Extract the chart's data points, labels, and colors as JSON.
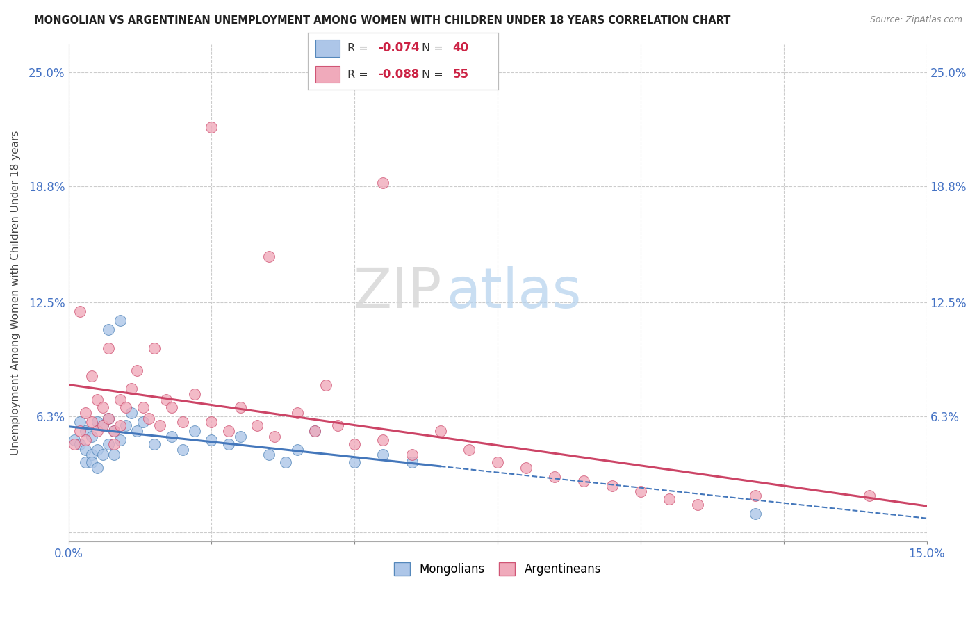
{
  "title": "MONGOLIAN VS ARGENTINEAN UNEMPLOYMENT AMONG WOMEN WITH CHILDREN UNDER 18 YEARS CORRELATION CHART",
  "source": "Source: ZipAtlas.com",
  "ylabel": "Unemployment Among Women with Children Under 18 years",
  "xlim": [
    0,
    0.15
  ],
  "ylim": [
    -0.005,
    0.265
  ],
  "xticks": [
    0.0,
    0.025,
    0.05,
    0.075,
    0.1,
    0.125,
    0.15
  ],
  "ytick_positions": [
    0.0,
    0.063,
    0.125,
    0.188,
    0.25
  ],
  "ytick_labels_left": [
    "",
    "6.3%",
    "12.5%",
    "18.8%",
    "25.0%"
  ],
  "ytick_labels_right": [
    "",
    "6.3%",
    "12.5%",
    "18.8%",
    "25.0%"
  ],
  "mongolian_R": -0.074,
  "mongolian_N": 40,
  "argentinean_R": -0.088,
  "argentinean_N": 55,
  "mongolian_color": "#adc6e8",
  "argentinean_color": "#f0aabb",
  "mongolian_edge": "#5588bb",
  "argentinean_edge": "#d05575",
  "trend_mongolian_color": "#4477bb",
  "trend_argentinean_color": "#cc4466",
  "background_color": "#ffffff",
  "grid_color": "#cccccc",
  "mong_x": [
    0.001,
    0.002,
    0.002,
    0.003,
    0.003,
    0.003,
    0.004,
    0.004,
    0.004,
    0.005,
    0.005,
    0.005,
    0.006,
    0.006,
    0.007,
    0.007,
    0.007,
    0.008,
    0.008,
    0.009,
    0.009,
    0.01,
    0.011,
    0.012,
    0.013,
    0.015,
    0.018,
    0.02,
    0.022,
    0.025,
    0.028,
    0.03,
    0.035,
    0.038,
    0.04,
    0.043,
    0.05,
    0.055,
    0.06,
    0.12
  ],
  "mong_y": [
    0.05,
    0.06,
    0.048,
    0.038,
    0.055,
    0.045,
    0.042,
    0.052,
    0.038,
    0.06,
    0.045,
    0.035,
    0.058,
    0.042,
    0.11,
    0.062,
    0.048,
    0.055,
    0.042,
    0.115,
    0.05,
    0.058,
    0.065,
    0.055,
    0.06,
    0.048,
    0.052,
    0.045,
    0.055,
    0.05,
    0.048,
    0.052,
    0.042,
    0.038,
    0.045,
    0.055,
    0.038,
    0.042,
    0.038,
    0.01
  ],
  "arg_x": [
    0.001,
    0.002,
    0.002,
    0.003,
    0.003,
    0.004,
    0.004,
    0.005,
    0.005,
    0.006,
    0.006,
    0.007,
    0.007,
    0.008,
    0.008,
    0.009,
    0.009,
    0.01,
    0.011,
    0.012,
    0.013,
    0.014,
    0.015,
    0.016,
    0.017,
    0.018,
    0.02,
    0.022,
    0.025,
    0.028,
    0.03,
    0.033,
    0.036,
    0.04,
    0.043,
    0.047,
    0.05,
    0.055,
    0.06,
    0.065,
    0.07,
    0.075,
    0.08,
    0.085,
    0.09,
    0.095,
    0.1,
    0.105,
    0.11,
    0.12,
    0.025,
    0.035,
    0.045,
    0.055,
    0.14
  ],
  "arg_y": [
    0.048,
    0.12,
    0.055,
    0.065,
    0.05,
    0.085,
    0.06,
    0.072,
    0.055,
    0.068,
    0.058,
    0.1,
    0.062,
    0.055,
    0.048,
    0.072,
    0.058,
    0.068,
    0.078,
    0.088,
    0.068,
    0.062,
    0.1,
    0.058,
    0.072,
    0.068,
    0.06,
    0.075,
    0.06,
    0.055,
    0.068,
    0.058,
    0.052,
    0.065,
    0.055,
    0.058,
    0.048,
    0.05,
    0.042,
    0.055,
    0.045,
    0.038,
    0.035,
    0.03,
    0.028,
    0.025,
    0.022,
    0.018,
    0.015,
    0.02,
    0.22,
    0.15,
    0.08,
    0.19,
    0.02
  ]
}
